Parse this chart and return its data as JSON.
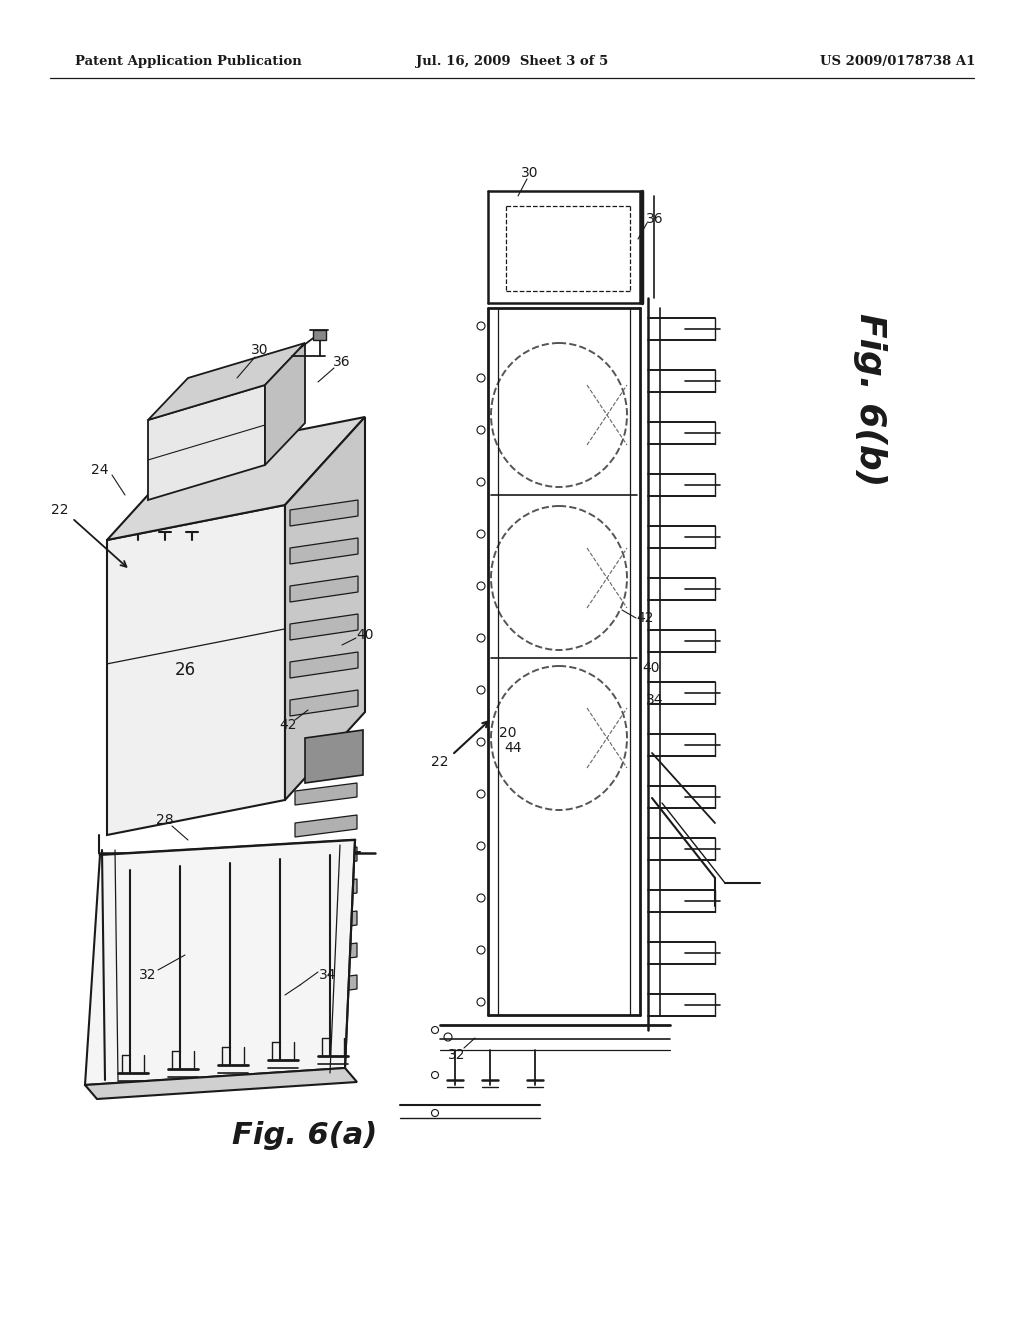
{
  "bg_color": "#ffffff",
  "line_color": "#1a1a1a",
  "header_left": "Patent Application Publication",
  "header_mid": "Jul. 16, 2009  Sheet 3 of 5",
  "header_right": "US 2009/0178738 A1",
  "fig_a_label": "Fig. 6(a)",
  "fig_b_label": "Fig. 6(b)"
}
